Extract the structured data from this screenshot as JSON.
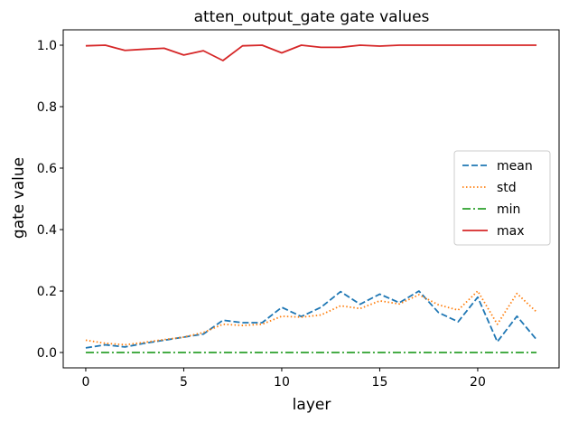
{
  "chart_data": {
    "type": "line",
    "title": "atten_output_gate gate values",
    "xlabel": "layer",
    "ylabel": "gate value",
    "xlim": [
      -1.15,
      24.15
    ],
    "ylim": [
      -0.05,
      1.05
    ],
    "xticks": [
      0,
      5,
      10,
      15,
      20
    ],
    "xtick_labels": [
      "0",
      "5",
      "10",
      "15",
      "20"
    ],
    "yticks": [
      0.0,
      0.2,
      0.4,
      0.6,
      0.8,
      1.0
    ],
    "ytick_labels": [
      "0.0",
      "0.2",
      "0.4",
      "0.6",
      "0.8",
      "1.0"
    ],
    "grid": false,
    "legend_position": "center-right",
    "x": [
      0,
      1,
      2,
      3,
      4,
      5,
      6,
      7,
      8,
      9,
      10,
      11,
      12,
      13,
      14,
      15,
      16,
      17,
      18,
      19,
      20,
      21,
      22,
      23
    ],
    "series": [
      {
        "name": "mean",
        "style": "dashed",
        "color": "#1f77b4",
        "values": [
          0.015,
          0.025,
          0.018,
          0.03,
          0.04,
          0.05,
          0.06,
          0.105,
          0.097,
          0.097,
          0.147,
          0.117,
          0.147,
          0.198,
          0.157,
          0.19,
          0.162,
          0.2,
          0.13,
          0.1,
          0.18,
          0.035,
          0.118,
          0.042
        ]
      },
      {
        "name": "std",
        "style": "dotted",
        "color": "#ff7f0e",
        "values": [
          0.04,
          0.03,
          0.025,
          0.033,
          0.042,
          0.05,
          0.065,
          0.092,
          0.088,
          0.092,
          0.118,
          0.115,
          0.122,
          0.152,
          0.143,
          0.168,
          0.158,
          0.188,
          0.155,
          0.138,
          0.2,
          0.092,
          0.192,
          0.132
        ]
      },
      {
        "name": "min",
        "style": "dashdot",
        "color": "#2ca02c",
        "values": [
          0,
          0,
          0,
          0,
          0,
          0,
          0,
          0,
          0,
          0,
          0,
          0,
          0,
          0,
          0,
          0,
          0,
          0,
          0,
          0,
          0,
          0,
          0,
          0
        ]
      },
      {
        "name": "max",
        "style": "solid",
        "color": "#d62728",
        "values": [
          0.998,
          1.0,
          0.983,
          0.987,
          0.99,
          0.968,
          0.982,
          0.95,
          0.998,
          1.0,
          0.975,
          1.0,
          0.993,
          0.993,
          1.0,
          0.997,
          1.0,
          1.0,
          1.0,
          1.0,
          1.0,
          1.0,
          1.0,
          1.0
        ]
      }
    ]
  }
}
